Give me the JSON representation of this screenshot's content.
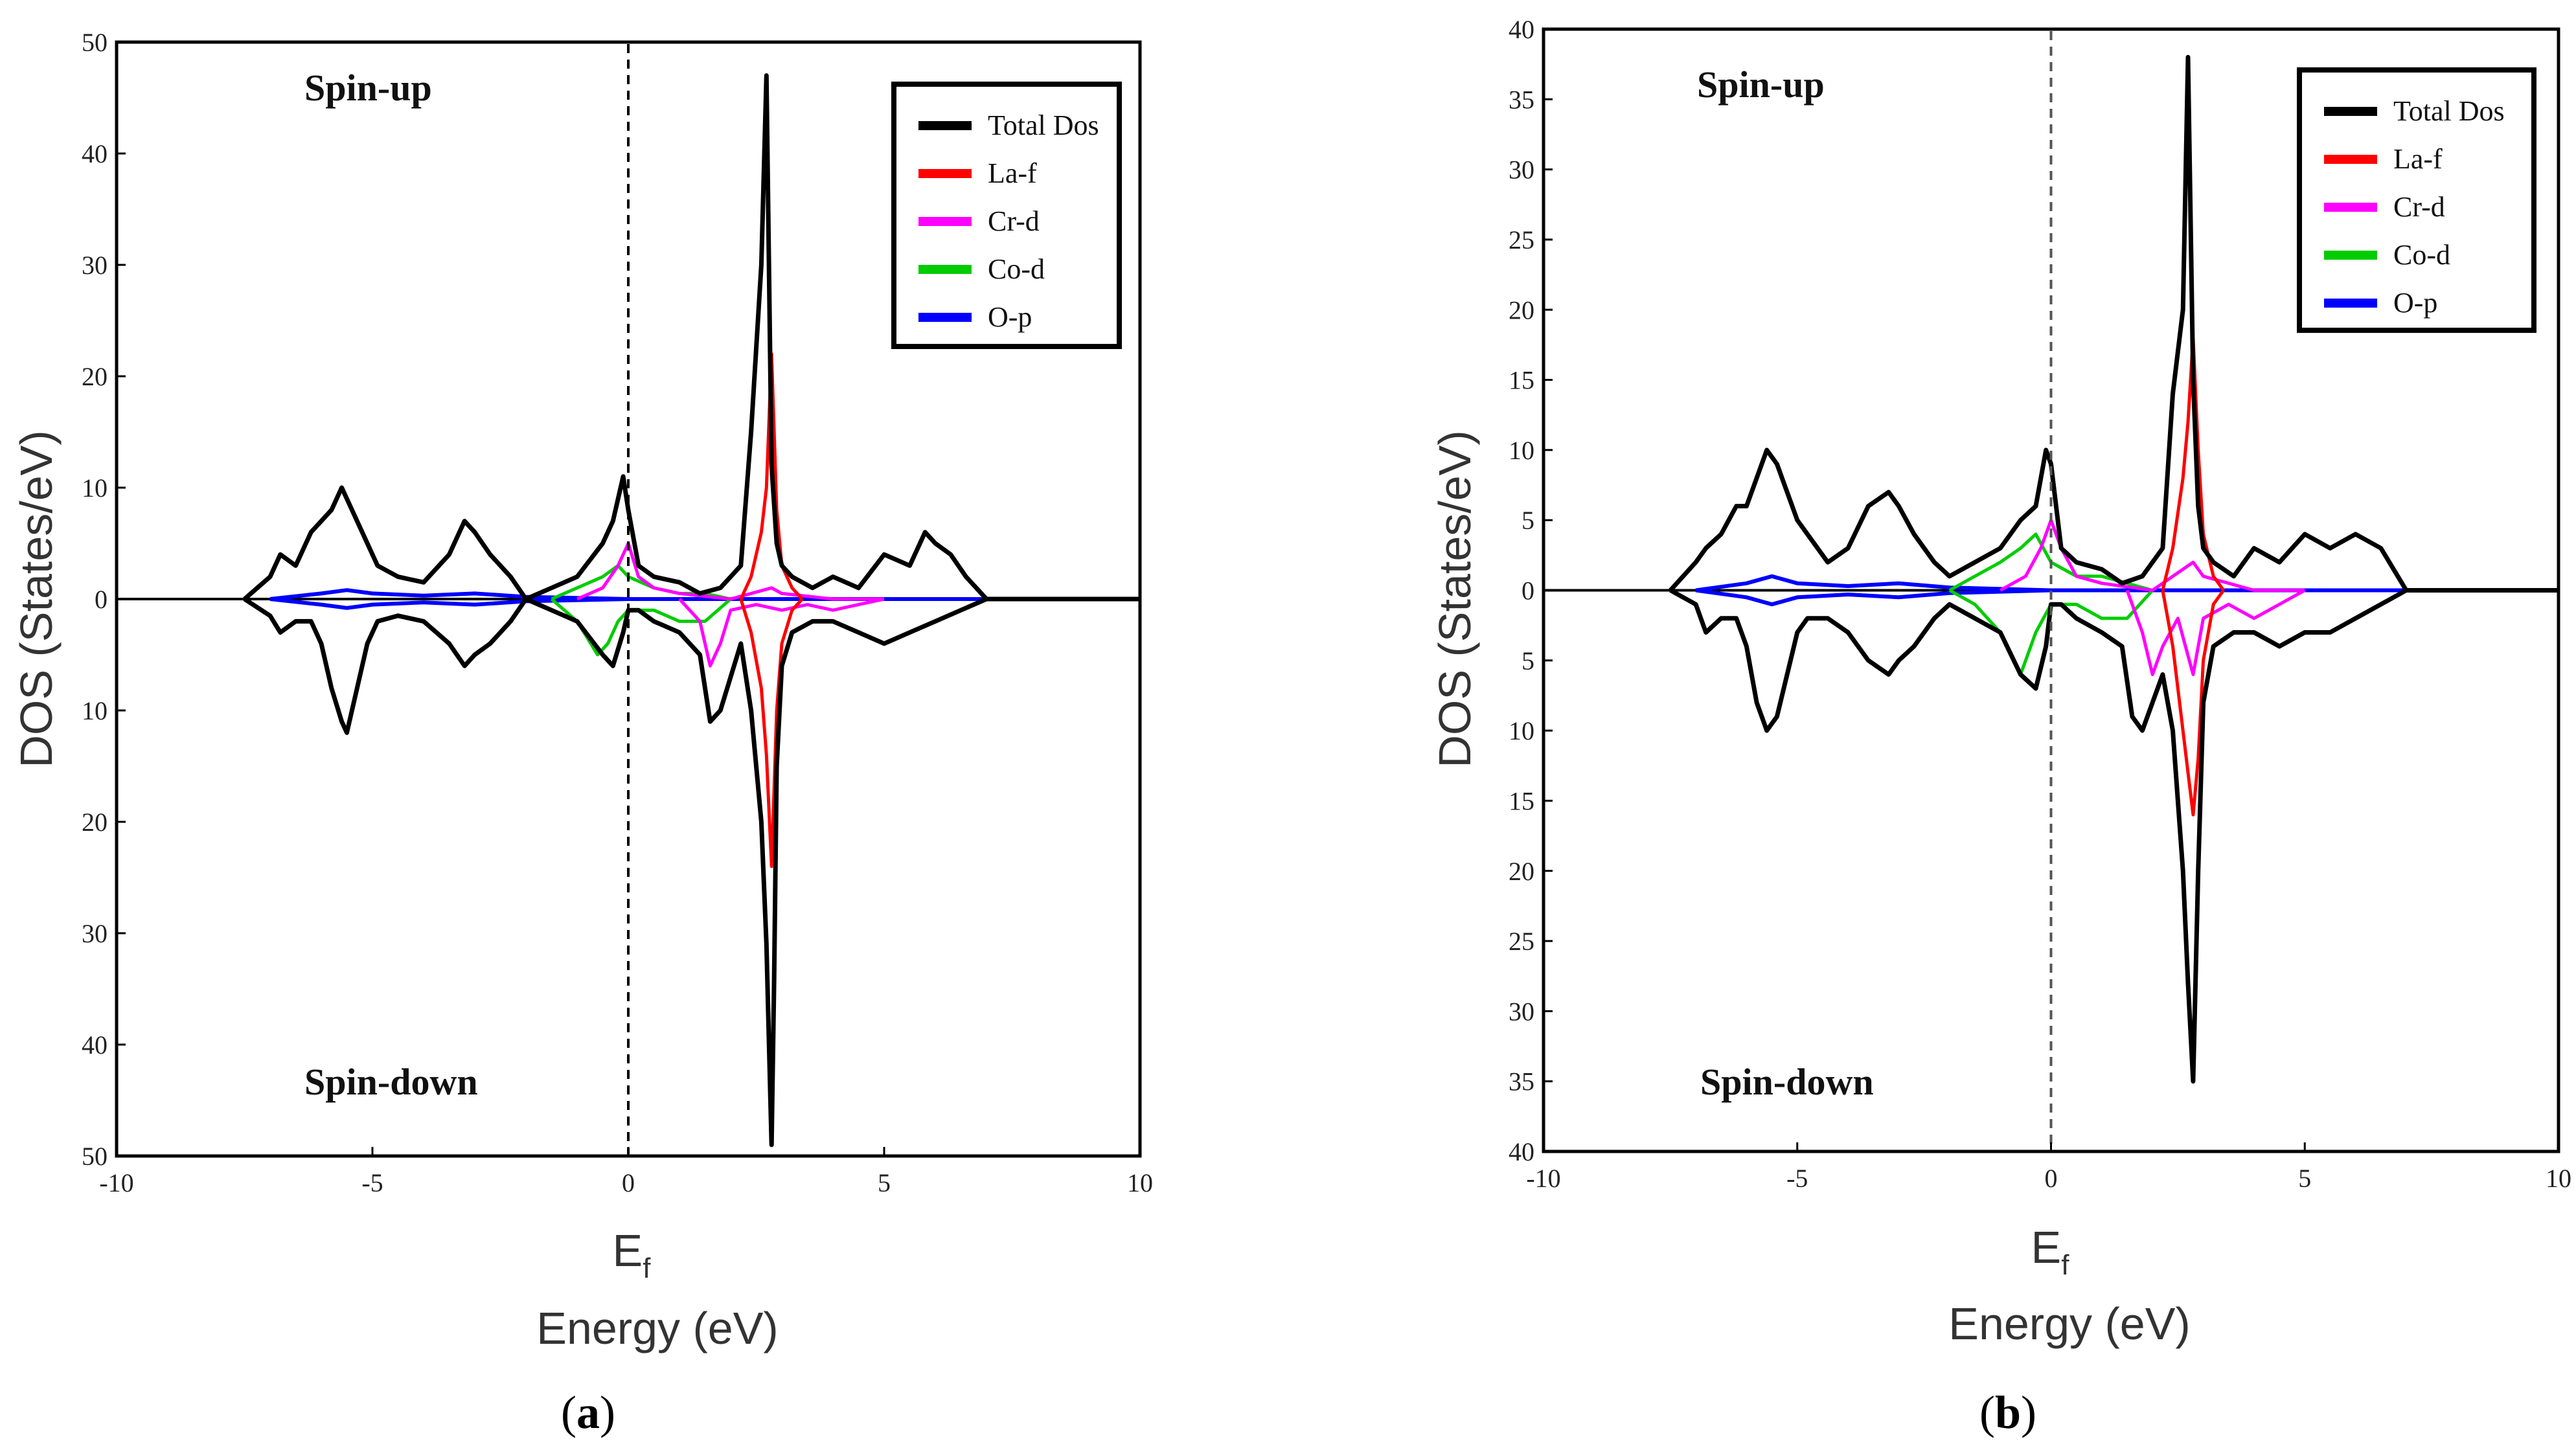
{
  "figure": {
    "panels": [
      {
        "id": "a",
        "caption_open": "(",
        "caption_letter": "a",
        "caption_close": ")",
        "spin_up": "Spin-up",
        "spin_down": "Spin-down",
        "fermi_label": "E",
        "fermi_sub": "f",
        "xlabel": "Energy (eV)",
        "ylabel": "DOS (States/eV)",
        "x_tick_labels": [
          "-10",
          "-5",
          "0",
          "5",
          "10"
        ],
        "y_tick_labels": [
          "50",
          "40",
          "30",
          "20",
          "10",
          "0",
          "10",
          "20",
          "30",
          "40",
          "50"
        ]
      },
      {
        "id": "b",
        "caption_open": "(",
        "caption_letter": "b",
        "caption_close": ")",
        "spin_up": "Spin-up",
        "spin_down": "Spin-down",
        "fermi_label": "E",
        "fermi_sub": "f",
        "xlabel": "Energy (eV)",
        "ylabel": "DOS (States/eV)",
        "x_tick_labels": [
          "-10",
          "-5",
          "0",
          "5",
          "10"
        ],
        "y_tick_labels": [
          "40",
          "35",
          "30",
          "25",
          "20",
          "15",
          "10",
          "5",
          "0",
          "5",
          "10",
          "15",
          "20",
          "25",
          "30",
          "35",
          "40"
        ]
      }
    ]
  },
  "colors": {
    "Total Dos": "#000000",
    "La-f": "#ff0000",
    "Cr-d": "#ff00ff",
    "Co-d": "#00cc00",
    "O-p": "#0000ff"
  },
  "chart_data": [
    {
      "type": "line",
      "panel": "a",
      "xlabel": "Energy (eV)",
      "ylabel": "DOS (States/eV)",
      "xlim": [
        -10,
        10
      ],
      "ylim": [
        -50,
        50
      ],
      "legend": [
        "Total Dos",
        "La-f",
        "Cr-d",
        "Co-d",
        "O-p"
      ],
      "legend_position": "top-right",
      "fermi_level": 0,
      "series": [
        {
          "name": "Total Dos",
          "spin": "up",
          "x": [
            -7.5,
            -7.0,
            -6.8,
            -6.5,
            -6.2,
            -6.0,
            -5.8,
            -5.6,
            -5.5,
            -5.3,
            -5.1,
            -4.9,
            -4.5,
            -4.0,
            -3.5,
            -3.2,
            -3.0,
            -2.7,
            -2.3,
            -2.0,
            -1.5,
            -1.0,
            -0.5,
            -0.3,
            -0.1,
            0.0,
            0.2,
            0.5,
            1.0,
            1.4,
            1.8,
            2.2,
            2.4,
            2.6,
            2.7,
            2.8,
            2.9,
            3.0,
            3.2,
            3.6,
            4.0,
            4.5,
            5.0,
            5.5,
            5.8,
            6.0,
            6.3,
            6.6,
            6.8,
            7.0,
            10.0
          ],
          "y": [
            0,
            2,
            4,
            3,
            6,
            7,
            8,
            10,
            9,
            7,
            5,
            3,
            2,
            1.5,
            4,
            7,
            6,
            4,
            2,
            0,
            1,
            2,
            5,
            7,
            11,
            8,
            3,
            2,
            1.5,
            0.5,
            1,
            3,
            15,
            30,
            47,
            12,
            5,
            3,
            2,
            1,
            2,
            1,
            4,
            3,
            6,
            5,
            4,
            2,
            1,
            0,
            0
          ]
        },
        {
          "name": "Total Dos",
          "spin": "down",
          "x": [
            -7.5,
            -7.0,
            -6.8,
            -6.5,
            -6.2,
            -6.0,
            -5.8,
            -5.6,
            -5.5,
            -5.3,
            -5.1,
            -4.9,
            -4.5,
            -4.0,
            -3.5,
            -3.2,
            -3.0,
            -2.7,
            -2.3,
            -2.0,
            -1.5,
            -1.0,
            -0.5,
            -0.3,
            -0.1,
            0.0,
            0.2,
            0.5,
            1.0,
            1.4,
            1.6,
            1.8,
            2.2,
            2.4,
            2.6,
            2.7,
            2.8,
            2.85,
            2.9,
            3.0,
            3.2,
            3.6,
            4.0,
            4.5,
            5.0,
            5.5,
            6.0,
            6.5,
            7.0,
            10.0
          ],
          "y": [
            0,
            -1.5,
            -3,
            -2,
            -2,
            -4,
            -8,
            -11,
            -12,
            -8,
            -4,
            -2,
            -1.5,
            -2,
            -4,
            -6,
            -5,
            -4,
            -2,
            0,
            -1,
            -2,
            -5,
            -6,
            -3,
            -1,
            -1,
            -2,
            -3,
            -5,
            -11,
            -10,
            -4,
            -10,
            -20,
            -31,
            -49,
            -34,
            -15,
            -6,
            -3,
            -2,
            -2,
            -3,
            -4,
            -3,
            -2,
            -1,
            0,
            0
          ]
        },
        {
          "name": "La-f",
          "spin": "up",
          "x": [
            2.2,
            2.4,
            2.6,
            2.7,
            2.8,
            2.9,
            3.0,
            3.2,
            3.4
          ],
          "y": [
            0,
            2,
            6,
            10,
            22,
            8,
            3,
            1,
            0
          ]
        },
        {
          "name": "La-f",
          "spin": "down",
          "x": [
            2.2,
            2.4,
            2.6,
            2.7,
            2.8,
            2.9,
            3.0,
            3.2,
            3.4
          ],
          "y": [
            0,
            -3,
            -8,
            -14,
            -24,
            -10,
            -4,
            -1,
            0
          ]
        },
        {
          "name": "Cr-d",
          "spin": "up",
          "x": [
            -1.0,
            -0.5,
            -0.2,
            0.0,
            0.2,
            0.5,
            1.0,
            2.0,
            2.8,
            3.0,
            4.0,
            5.0
          ],
          "y": [
            0,
            1,
            3,
            5,
            2,
            1,
            0.5,
            0,
            1,
            0.5,
            0,
            0
          ]
        },
        {
          "name": "Cr-d",
          "spin": "down",
          "x": [
            1.0,
            1.4,
            1.6,
            1.8,
            2.0,
            2.5,
            3.0,
            3.5,
            4.0,
            4.5,
            5.0
          ],
          "y": [
            0,
            -2,
            -6,
            -4,
            -1,
            -0.5,
            -1,
            -0.5,
            -1,
            -0.5,
            0
          ]
        },
        {
          "name": "Co-d",
          "spin": "up",
          "x": [
            -1.5,
            -1.0,
            -0.5,
            -0.2,
            0.0,
            0.5,
            1.0,
            1.5,
            2.0
          ],
          "y": [
            0,
            1,
            2,
            3,
            2,
            1,
            0.5,
            0.5,
            0
          ]
        },
        {
          "name": "Co-d",
          "spin": "down",
          "x": [
            -1.5,
            -1.0,
            -0.6,
            -0.4,
            -0.2,
            0.0,
            0.5,
            1.0,
            1.5,
            2.0
          ],
          "y": [
            0,
            -2,
            -5,
            -4,
            -2,
            -1,
            -1,
            -2,
            -2,
            0
          ]
        },
        {
          "name": "O-p",
          "spin": "up",
          "x": [
            -7.0,
            -6.0,
            -5.5,
            -5.0,
            -4.0,
            -3.0,
            -2.0,
            0.0,
            10.0
          ],
          "y": [
            0,
            0.5,
            0.8,
            0.5,
            0.3,
            0.5,
            0.2,
            0,
            0
          ]
        },
        {
          "name": "O-p",
          "spin": "down",
          "x": [
            -7.0,
            -6.0,
            -5.5,
            -5.0,
            -4.0,
            -3.0,
            -2.0,
            0.0,
            10.0
          ],
          "y": [
            0,
            -0.5,
            -0.8,
            -0.5,
            -0.3,
            -0.5,
            -0.2,
            0,
            0
          ]
        }
      ]
    },
    {
      "type": "line",
      "panel": "b",
      "xlabel": "Energy (eV)",
      "ylabel": "DOS (States/eV)",
      "xlim": [
        -10,
        10
      ],
      "ylim": [
        -40,
        40
      ],
      "legend": [
        "Total Dos",
        "La-f",
        "Cr-d",
        "Co-d",
        "O-p"
      ],
      "legend_position": "top-right",
      "fermi_level": 0,
      "series": [
        {
          "name": "Total Dos",
          "spin": "up",
          "x": [
            -7.5,
            -7.0,
            -6.8,
            -6.5,
            -6.2,
            -6.0,
            -5.8,
            -5.6,
            -5.4,
            -5.2,
            -5.0,
            -4.8,
            -4.4,
            -4.0,
            -3.6,
            -3.2,
            -3.0,
            -2.7,
            -2.3,
            -2.0,
            -1.5,
            -1.0,
            -0.6,
            -0.3,
            -0.1,
            0.0,
            0.2,
            0.5,
            1.0,
            1.4,
            1.8,
            2.2,
            2.4,
            2.6,
            2.7,
            2.8,
            2.9,
            3.0,
            3.2,
            3.6,
            4.0,
            4.5,
            5.0,
            5.5,
            6.0,
            6.5,
            7.0,
            10.0
          ],
          "y": [
            0,
            2,
            3,
            4,
            6,
            6,
            8,
            10,
            9,
            7,
            5,
            4,
            2,
            3,
            6,
            7,
            6,
            4,
            2,
            1,
            2,
            3,
            5,
            6,
            10,
            9,
            3,
            2,
            1.5,
            0.5,
            1,
            3,
            14,
            20,
            38,
            15,
            6,
            3,
            2,
            1,
            3,
            2,
            4,
            3,
            4,
            3,
            0,
            0
          ]
        },
        {
          "name": "Total Dos",
          "spin": "down",
          "x": [
            -7.5,
            -7.0,
            -6.8,
            -6.5,
            -6.2,
            -6.0,
            -5.8,
            -5.6,
            -5.4,
            -5.2,
            -5.0,
            -4.8,
            -4.4,
            -4.0,
            -3.6,
            -3.2,
            -3.0,
            -2.7,
            -2.3,
            -2.0,
            -1.5,
            -1.0,
            -0.6,
            -0.3,
            -0.1,
            0.0,
            0.2,
            0.5,
            1.0,
            1.4,
            1.6,
            1.8,
            2.2,
            2.4,
            2.6,
            2.7,
            2.8,
            2.9,
            3.0,
            3.2,
            3.6,
            4.0,
            4.5,
            5.0,
            5.5,
            6.0,
            6.5,
            7.0,
            10.0
          ],
          "y": [
            0,
            -1,
            -3,
            -2,
            -2,
            -4,
            -8,
            -10,
            -9,
            -6,
            -3,
            -2,
            -2,
            -3,
            -5,
            -6,
            -5,
            -4,
            -2,
            -1,
            -2,
            -3,
            -6,
            -7,
            -4,
            -1,
            -1,
            -2,
            -3,
            -4,
            -9,
            -10,
            -6,
            -10,
            -20,
            -28,
            -35,
            -20,
            -8,
            -4,
            -3,
            -3,
            -4,
            -3,
            -3,
            -2,
            -1,
            0,
            0
          ]
        },
        {
          "name": "La-f",
          "spin": "up",
          "x": [
            2.2,
            2.4,
            2.6,
            2.7,
            2.8,
            2.9,
            3.0,
            3.2,
            3.4
          ],
          "y": [
            0,
            3,
            8,
            12,
            18,
            10,
            4,
            1,
            0
          ]
        },
        {
          "name": "La-f",
          "spin": "down",
          "x": [
            2.2,
            2.4,
            2.6,
            2.7,
            2.8,
            2.9,
            3.0,
            3.2,
            3.4
          ],
          "y": [
            0,
            -4,
            -10,
            -13,
            -16,
            -12,
            -5,
            -1,
            0
          ]
        },
        {
          "name": "Cr-d",
          "spin": "up",
          "x": [
            -1.0,
            -0.5,
            -0.2,
            0.0,
            0.2,
            0.5,
            1.0,
            2.0,
            2.8,
            3.0,
            4.0,
            5.0
          ],
          "y": [
            0,
            1,
            3,
            5,
            3,
            1,
            0.5,
            0,
            2,
            1,
            0,
            0
          ]
        },
        {
          "name": "Cr-d",
          "spin": "down",
          "x": [
            1.5,
            1.8,
            2.0,
            2.2,
            2.5,
            2.8,
            3.0,
            3.5,
            4.0,
            4.5,
            5.0
          ],
          "y": [
            0,
            -3,
            -6,
            -4,
            -2,
            -6,
            -2,
            -1,
            -2,
            -1,
            0
          ]
        },
        {
          "name": "Co-d",
          "spin": "up",
          "x": [
            -2.0,
            -1.5,
            -1.0,
            -0.6,
            -0.3,
            0.0,
            0.5,
            1.0,
            1.5,
            2.0
          ],
          "y": [
            0,
            1,
            2,
            3,
            4,
            2,
            1,
            1,
            0.5,
            0
          ]
        },
        {
          "name": "Co-d",
          "spin": "down",
          "x": [
            -2.0,
            -1.5,
            -1.0,
            -0.6,
            -0.3,
            0.0,
            0.5,
            1.0,
            1.5,
            2.0
          ],
          "y": [
            0,
            -1,
            -3,
            -6,
            -3,
            -1,
            -1,
            -2,
            -2,
            0
          ]
        },
        {
          "name": "O-p",
          "spin": "up",
          "x": [
            -7.0,
            -6.0,
            -5.5,
            -5.0,
            -4.0,
            -3.0,
            -2.0,
            0.0,
            10.0
          ],
          "y": [
            0,
            0.5,
            1,
            0.5,
            0.3,
            0.5,
            0.2,
            0,
            0
          ]
        },
        {
          "name": "O-p",
          "spin": "down",
          "x": [
            -7.0,
            -6.0,
            -5.5,
            -5.0,
            -4.0,
            -3.0,
            -2.0,
            0.0,
            10.0
          ],
          "y": [
            0,
            -0.5,
            -1,
            -0.5,
            -0.3,
            -0.5,
            -0.2,
            0,
            0
          ]
        }
      ]
    }
  ]
}
